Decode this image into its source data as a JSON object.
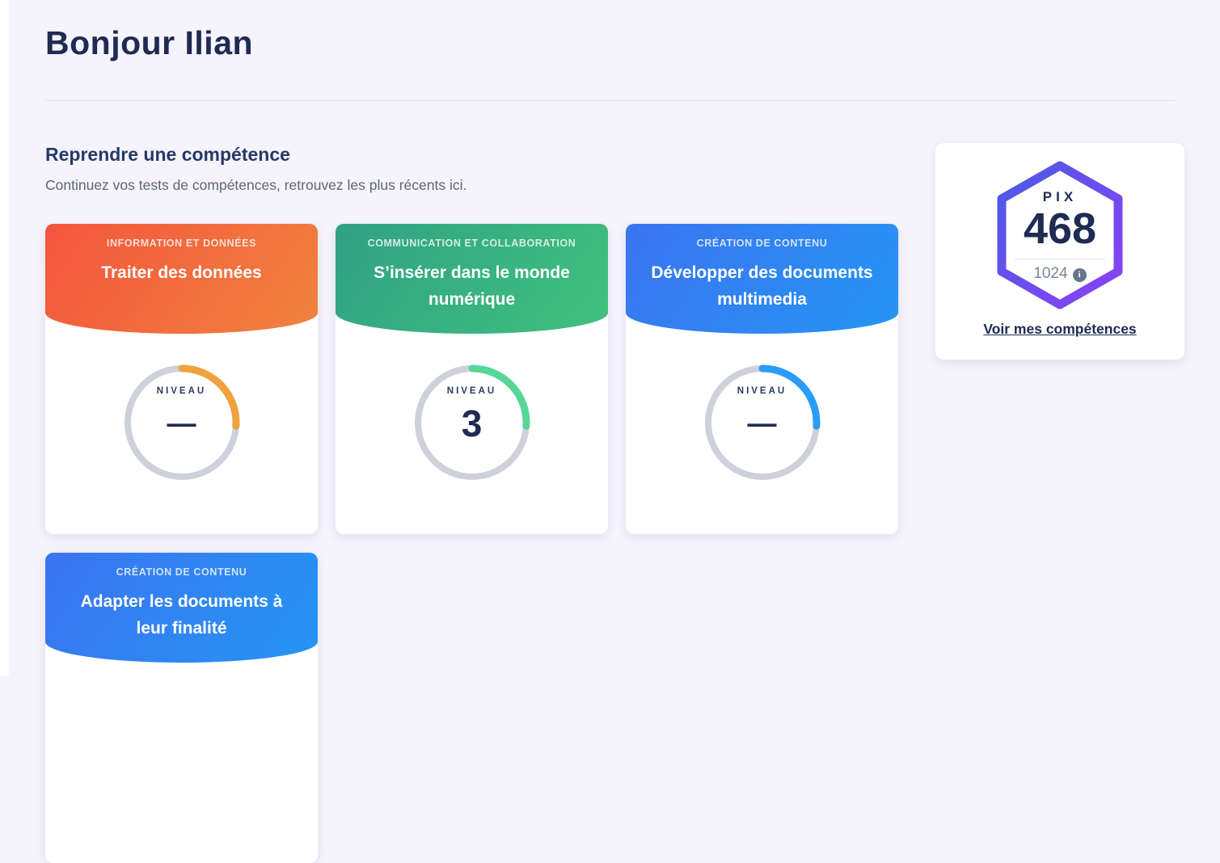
{
  "page": {
    "background_color": "#f5f3fc",
    "greeting": "Bonjour Ilian"
  },
  "section": {
    "title": "Reprendre une compétence",
    "subtitle": "Continuez vos tests de compétences, retrouvez les plus récents ici."
  },
  "gauge": {
    "track_color": "#ccd1dc"
  },
  "cards": [
    {
      "area": "INFORMATION ET DONNÉES",
      "title": "Traiter des données",
      "level_label": "NIVEAU",
      "level": "—",
      "arc_percent": 26,
      "gradient_from": "#f4553d",
      "gradient_to": "#f0833e",
      "arc_color": "#f1a13d"
    },
    {
      "area": "COMMUNICATION ET COLLABORATION",
      "title": "S’insérer dans le monde numérique",
      "level_label": "NIVEAU",
      "level": "3",
      "arc_percent": 26,
      "gradient_from": "#30a184",
      "gradient_to": "#40c17e",
      "arc_color": "#57d795"
    },
    {
      "area": "CRÉATION DE CONTENU",
      "title": "Développer des documents multimedia",
      "level_label": "NIVEAU",
      "level": "—",
      "arc_percent": 26,
      "gradient_from": "#3b74f0",
      "gradient_to": "#2595f5",
      "arc_color": "#2b9cf7"
    },
    {
      "area": "CRÉATION DE CONTENU",
      "title": "Adapter les documents à leur finalité",
      "gradient_from": "#3b74f0",
      "gradient_to": "#2595f5"
    }
  ],
  "score_card": {
    "label": "PIX",
    "score": "468",
    "max_score": "1024",
    "info_icon_glyph": "i",
    "link_label": "Voir mes compétences",
    "hex_gradient_from": "#4b5be6",
    "hex_gradient_to": "#8a41f3"
  }
}
